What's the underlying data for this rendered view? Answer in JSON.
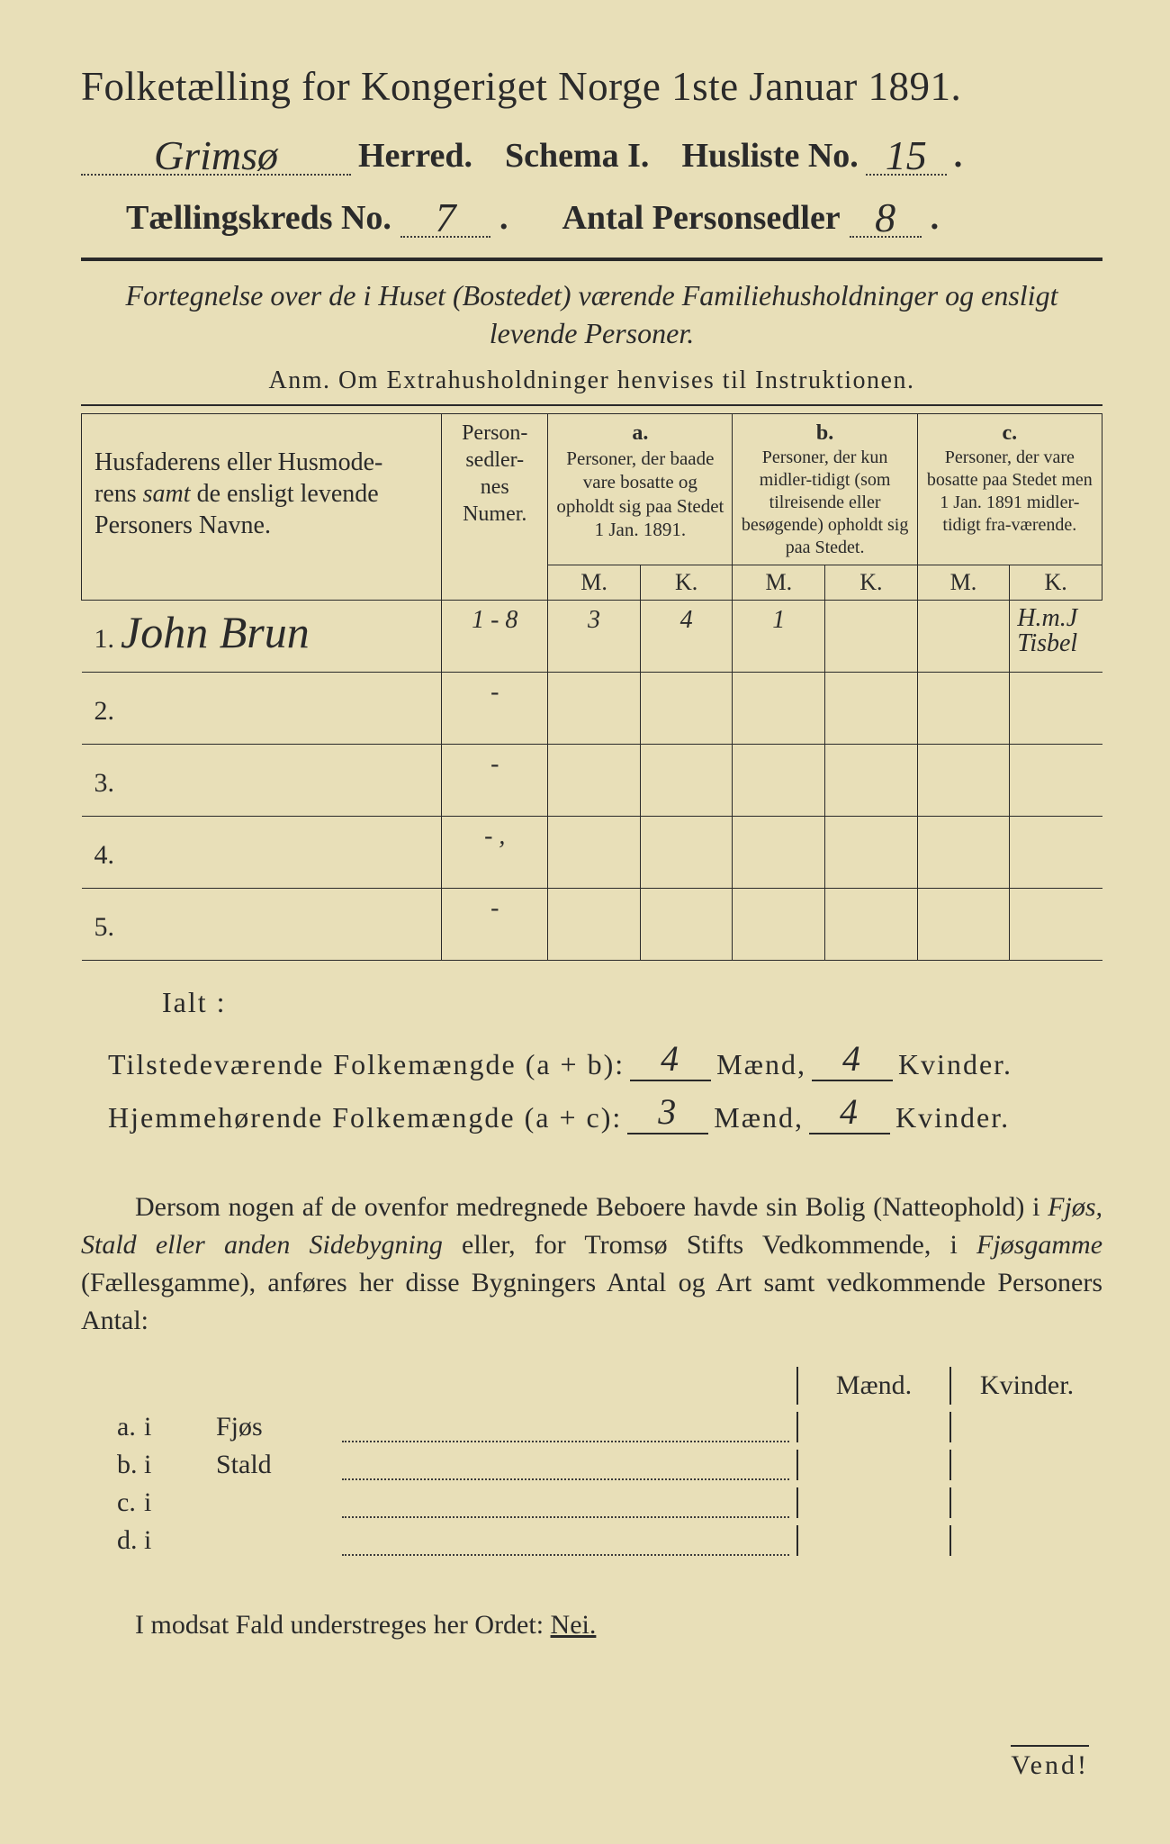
{
  "background_color": "#e8dfb8",
  "text_color": "#2a2a2a",
  "title": "Folketælling for Kongeriget Norge 1ste Januar 1891.",
  "header": {
    "herred_hw": "Grimsø",
    "herred_label": "Herred.",
    "schema_label": "Schema I.",
    "husliste_label": "Husliste No.",
    "husliste_no_hw": "15",
    "kreds_label": "Tællingskreds No.",
    "kreds_no_hw": "7",
    "antal_label": "Antal Personsedler",
    "antal_hw": "8"
  },
  "subtitle_line1": "Fortegnelse over de i Huset (Bostedet) værende Familiehusholdninger og ensligt",
  "subtitle_line2": "levende Personer.",
  "anm": "Anm. Om Extrahusholdninger henvises til Instruktionen.",
  "table": {
    "col_names_header": "Husfaderens eller Husmoderens samt de ensligt levende Personers Navne.",
    "col_num_header": "Person-\nsedler-\nnes\nNumer.",
    "col_a_label": "a.",
    "col_a_header": "Personer, der baade vare bosatte og opholdt sig paa Stedet 1 Jan. 1891.",
    "col_b_label": "b.",
    "col_b_header": "Personer, der kun midler-tidigt (som tilreisende eller besøgende) opholdt sig paa Stedet.",
    "col_c_label": "c.",
    "col_c_header": "Personer, der vare bosatte paa Stedet men 1 Jan. 1891 midler-tidigt fra-værende.",
    "M": "M.",
    "K": "K.",
    "rows": [
      {
        "n": "1.",
        "name_hw": "John Brun",
        "num_hw": "1 - 8",
        "aM": "3",
        "aK": "4",
        "bM": "1",
        "bK": "",
        "cM": "",
        "cK": "H.m.J Tisbel"
      },
      {
        "n": "2.",
        "name_hw": "",
        "num_hw": "-",
        "aM": "",
        "aK": "",
        "bM": "",
        "bK": "",
        "cM": "",
        "cK": ""
      },
      {
        "n": "3.",
        "name_hw": "",
        "num_hw": "-",
        "aM": "",
        "aK": "",
        "bM": "",
        "bK": "",
        "cM": "",
        "cK": ""
      },
      {
        "n": "4.",
        "name_hw": "",
        "num_hw": "- ,",
        "aM": "",
        "aK": "",
        "bM": "",
        "bK": "",
        "cM": "",
        "cK": ""
      },
      {
        "n": "5.",
        "name_hw": "",
        "num_hw": "-",
        "aM": "",
        "aK": "",
        "bM": "",
        "bK": "",
        "cM": "",
        "cK": ""
      }
    ]
  },
  "ialt": "Ialt :",
  "totals": {
    "line1_label": "Tilstedeværende Folkemængde (a + b):",
    "line1_m_hw": "4",
    "line1_k_hw": "4",
    "line2_label": "Hjemmehørende Folkemængde (a + c):",
    "line2_m_hw": "3",
    "line2_k_hw": "4",
    "maend": "Mænd,",
    "kvinder": "Kvinder."
  },
  "para_text": "Dersom nogen af de ovenfor medregnede Beboere havde sin Bolig (Natteophold) i Fjøs, Stald eller anden Sidebygning eller, for Tromsø Stifts Vedkommende, i Fjøsgamme (Fællesgamme), anføres her disse Bygningers Antal og Art samt vedkommende Personers Antal:",
  "sidebld": {
    "maend": "Mænd.",
    "kvinder": "Kvinder.",
    "rows": [
      {
        "key": "a.",
        "i": "i",
        "name": "Fjøs"
      },
      {
        "key": "b.",
        "i": "i",
        "name": "Stald"
      },
      {
        "key": "c.",
        "i": "i",
        "name": ""
      },
      {
        "key": "d.",
        "i": "i",
        "name": ""
      }
    ]
  },
  "nei_line_prefix": "I modsat Fald understreges her Ordet: ",
  "nei": "Nei.",
  "vend": "Vend!"
}
